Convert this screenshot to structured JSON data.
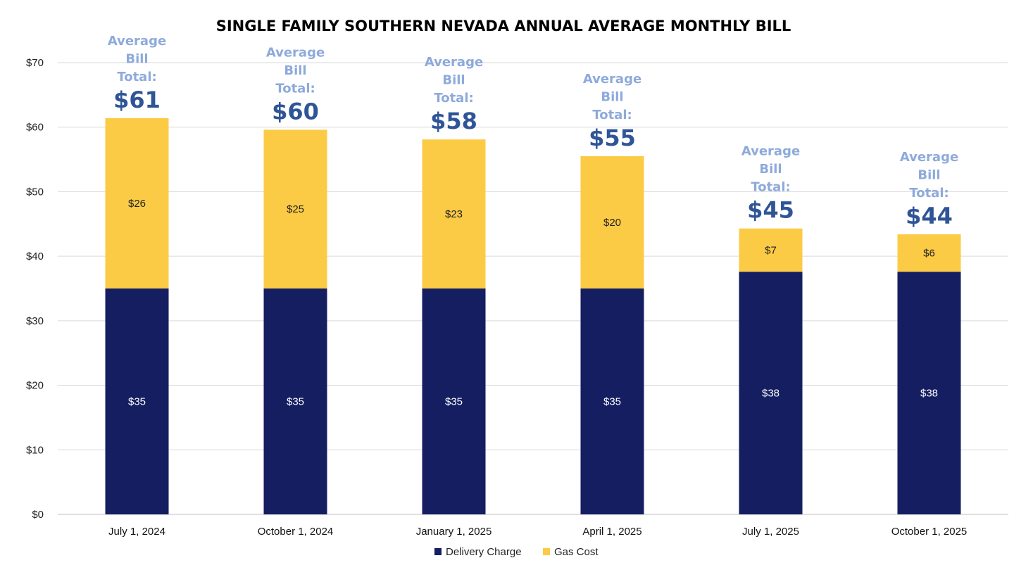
{
  "chart_data": {
    "type": "bar",
    "stacked": true,
    "title": "SINGLE FAMILY SOUTHERN NEVADA ANNUAL AVERAGE MONTHLY BILL",
    "xlabel": "",
    "ylabel": "",
    "ylim": [
      0,
      70
    ],
    "yticks": [
      0,
      10,
      20,
      30,
      40,
      50,
      60,
      70
    ],
    "ytick_labels": [
      "$0",
      "$10",
      "$20",
      "$30",
      "$40",
      "$50",
      "$60",
      "$70"
    ],
    "grid": true,
    "legend_position": "bottom",
    "categories": [
      "July 1, 2024",
      "October 1, 2024",
      "January 1, 2025",
      "April 1, 2025",
      "July 1, 2025",
      "October 1, 2025"
    ],
    "series": [
      {
        "name": "Delivery Charge",
        "color": "#141e61",
        "values": [
          35,
          35,
          35,
          35,
          37.6,
          37.6
        ],
        "labels": [
          "$35",
          "$35",
          "$35",
          "$35",
          "$38",
          "$38"
        ]
      },
      {
        "name": "Gas Cost",
        "color": "#fccb45",
        "values": [
          26.4,
          24.6,
          23.1,
          20.5,
          6.7,
          5.8
        ],
        "labels": [
          "$26",
          "$25",
          "$23",
          "$20",
          "$7",
          "$6"
        ]
      }
    ],
    "annotations": {
      "text_lines": [
        "Average",
        "Bill",
        "Total:"
      ],
      "text_color": "#8eaadb",
      "total_color": "#2f5597",
      "totals": [
        "$61",
        "$60",
        "$58",
        "$55",
        "$45",
        "$44"
      ]
    }
  }
}
